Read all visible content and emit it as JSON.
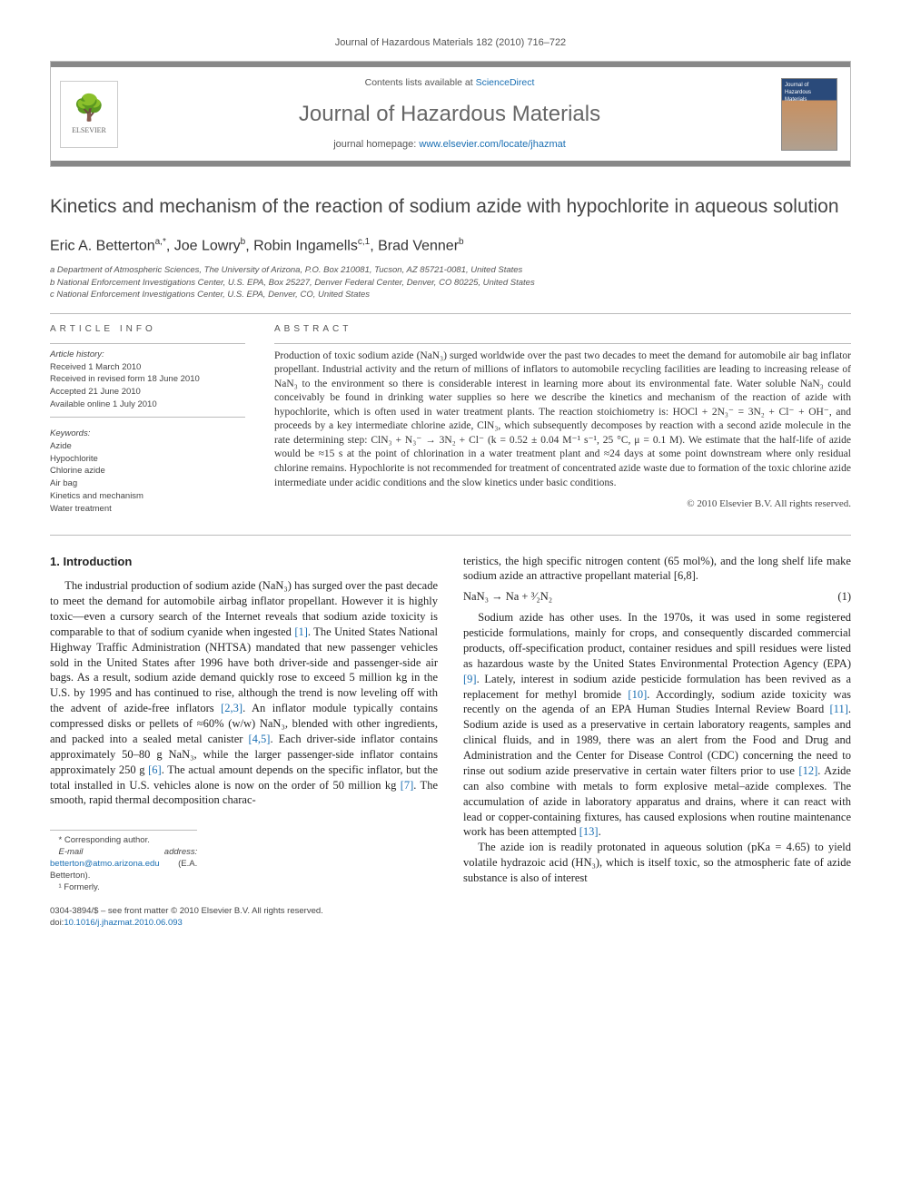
{
  "citation": "Journal of Hazardous Materials 182 (2010) 716–722",
  "header": {
    "contents_prefix": "Contents lists available at ",
    "contents_link": "ScienceDirect",
    "journal_name": "Journal of Hazardous Materials",
    "homepage_prefix": "journal homepage: ",
    "homepage_link": "www.elsevier.com/locate/jhazmat",
    "elsevier_label": "ELSEVIER"
  },
  "title": "Kinetics and mechanism of the reaction of sodium azide with hypochlorite in aqueous solution",
  "authors_html": "Eric A. Betterton<sup>a,*</sup>, Joe Lowry<sup>b</sup>, Robin Ingamells<sup>c,1</sup>, Brad Venner<sup>b</sup>",
  "affiliations": {
    "a": "a Department of Atmospheric Sciences, The University of Arizona, P.O. Box 210081, Tucson, AZ 85721-0081, United States",
    "b": "b National Enforcement Investigations Center, U.S. EPA, Box 25227, Denver Federal Center, Denver, CO 80225, United States",
    "c": "c National Enforcement Investigations Center, U.S. EPA, Denver, CO, United States"
  },
  "article_info": {
    "heading": "article info",
    "history_head": "Article history:",
    "history": [
      "Received 1 March 2010",
      "Received in revised form 18 June 2010",
      "Accepted 21 June 2010",
      "Available online 1 July 2010"
    ],
    "keywords_head": "Keywords:",
    "keywords": [
      "Azide",
      "Hypochlorite",
      "Chlorine azide",
      "Air bag",
      "Kinetics and mechanism",
      "Water treatment"
    ]
  },
  "abstract": {
    "heading": "abstract",
    "text": "Production of toxic sodium azide (NaN₃) surged worldwide over the past two decades to meet the demand for automobile air bag inflator propellant. Industrial activity and the return of millions of inflators to automobile recycling facilities are leading to increasing release of NaN₃ to the environment so there is considerable interest in learning more about its environmental fate. Water soluble NaN₃ could conceivably be found in drinking water supplies so here we describe the kinetics and mechanism of the reaction of azide with hypochlorite, which is often used in water treatment plants. The reaction stoichiometry is: HOCl + 2N₃⁻ = 3N₂ + Cl⁻ + OH⁻, and proceeds by a key intermediate chlorine azide, ClN₃, which subsequently decomposes by reaction with a second azide molecule in the rate determining step: ClN₃ + N₃⁻ → 3N₂ + Cl⁻ (k = 0.52 ± 0.04 M⁻¹ s⁻¹, 25 °C, μ = 0.1 M). We estimate that the half-life of azide would be ≈15 s at the point of chlorination in a water treatment plant and ≈24 days at some point downstream where only residual chlorine remains. Hypochlorite is not recommended for treatment of concentrated azide waste due to formation of the toxic chlorine azide intermediate under acidic conditions and the slow kinetics under basic conditions.",
    "copyright": "© 2010 Elsevier B.V. All rights reserved."
  },
  "body": {
    "section1_heading": "1. Introduction",
    "p1": "The industrial production of sodium azide (NaN₃) has surged over the past decade to meet the demand for automobile airbag inflator propellant. However it is highly toxic—even a cursory search of the Internet reveals that sodium azide toxicity is comparable to that of sodium cyanide when ingested [1]. The United States National Highway Traffic Administration (NHTSA) mandated that new passenger vehicles sold in the United States after 1996 have both driver-side and passenger-side air bags. As a result, sodium azide demand quickly rose to exceed 5 million kg in the U.S. by 1995 and has continued to rise, although the trend is now leveling off with the advent of azide-free inflators [2,3]. An inflator module typically contains compressed disks or pellets of ≈60% (w/w) NaN₃, blended with other ingredients, and packed into a sealed metal canister [4,5]. Each driver-side inflator contains approximately 50–80 g NaN₃, while the larger passenger-side inflator contains approximately 250 g [6]. The actual amount depends on the specific inflator, but the total installed in U.S. vehicles alone is now on the order of 50 million kg [7]. The smooth, rapid thermal decomposition charac-",
    "p1b": "teristics, the high specific nitrogen content (65 mol%), and the long shelf life make sodium azide an attractive propellant material [6,8].",
    "eq1_lhs": "NaN₃ → Na + ³⁄₂N₂",
    "eq1_num": "(1)",
    "p2": "Sodium azide has other uses. In the 1970s, it was used in some registered pesticide formulations, mainly for crops, and consequently discarded commercial products, off-specification product, container residues and spill residues were listed as hazardous waste by the United States Environmental Protection Agency (EPA) [9]. Lately, interest in sodium azide pesticide formulation has been revived as a replacement for methyl bromide [10]. Accordingly, sodium azide toxicity was recently on the agenda of an EPA Human Studies Internal Review Board [11]. Sodium azide is used as a preservative in certain laboratory reagents, samples and clinical fluids, and in 1989, there was an alert from the Food and Drug and Administration and the Center for Disease Control (CDC) concerning the need to rinse out sodium azide preservative in certain water filters prior to use [12]. Azide can also combine with metals to form explosive metal–azide complexes. The accumulation of azide in laboratory apparatus and drains, where it can react with lead or copper-containing fixtures, has caused explosions when routine maintenance work has been attempted [13].",
    "p3": "The azide ion is readily protonated in aqueous solution (pKa = 4.65) to yield volatile hydrazoic acid (HN₃), which is itself toxic, so the atmospheric fate of azide substance is also of interest"
  },
  "footnotes": {
    "corr": "* Corresponding author.",
    "email_label": "E-mail address: ",
    "email": "betterton@atmo.arizona.edu",
    "email_suffix": " (E.A. Betterton).",
    "formerly": "¹ Formerly."
  },
  "footer": {
    "line1": "0304-3894/$ – see front matter © 2010 Elsevier B.V. All rights reserved.",
    "doi_label": "doi:",
    "doi": "10.1016/j.jhazmat.2010.06.093"
  },
  "refs": [
    "[1]",
    "[2,3]",
    "[4,5]",
    "[6]",
    "[7]",
    "[6,8]",
    "[9]",
    "[10]",
    "[11]",
    "[12]",
    "[13]"
  ],
  "colors": {
    "link": "#1a6fb3",
    "bar": "#888888",
    "rule": "#bbbbbb",
    "text": "#333333"
  }
}
